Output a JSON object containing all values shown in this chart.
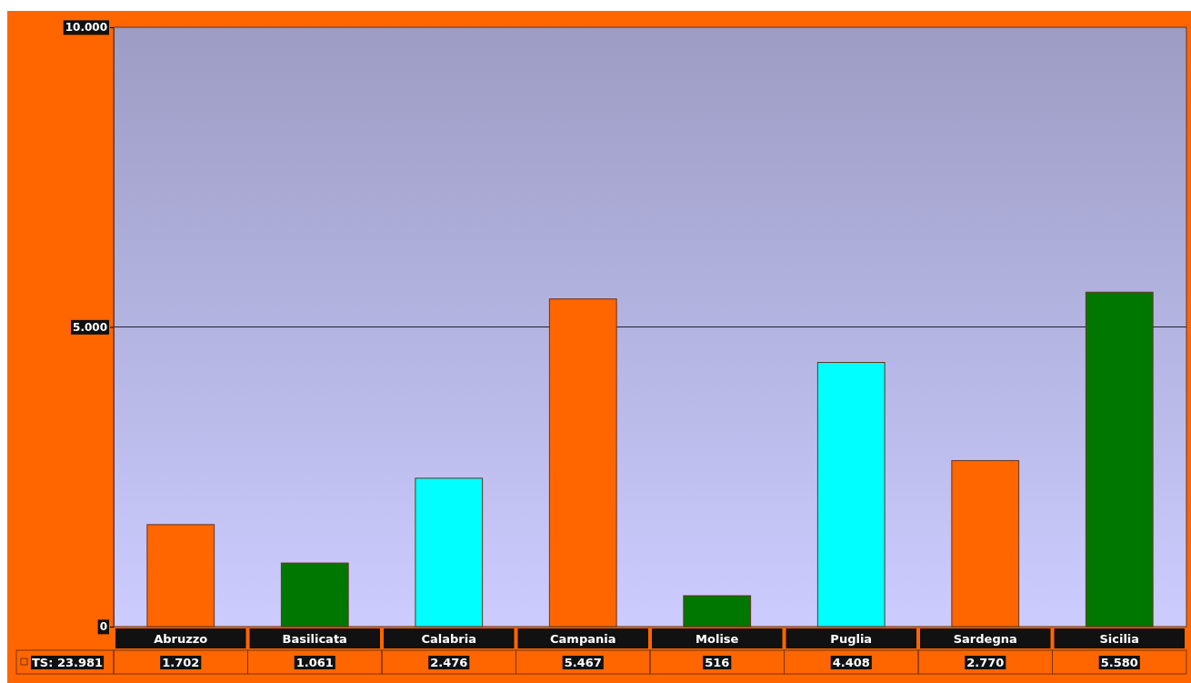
{
  "chart_data": {
    "type": "bar",
    "categories": [
      "Abruzzo",
      "Basilicata",
      "Calabria",
      "Campania",
      "Molise",
      "Puglia",
      "Sardegna",
      "Sicilia"
    ],
    "values": [
      1702,
      1061,
      2476,
      5467,
      516,
      4408,
      2770,
      5580
    ],
    "colors": [
      "#ff6600",
      "#007700",
      "#00ffff",
      "#ff6600",
      "#007700",
      "#00ffff",
      "#ff6600",
      "#007700"
    ],
    "value_labels": [
      "1.702",
      "1.061",
      "2.476",
      "5.467",
      "516",
      "4.408",
      "2.770",
      "5.580"
    ],
    "ylim": [
      0,
      10000
    ],
    "yticks": [
      {
        "value": 0,
        "label": "0"
      },
      {
        "value": 5000,
        "label": "5.000"
      },
      {
        "value": 10000,
        "label": "10.000"
      }
    ],
    "grid": "y",
    "annotations": [
      "TS: 23.981"
    ]
  }
}
